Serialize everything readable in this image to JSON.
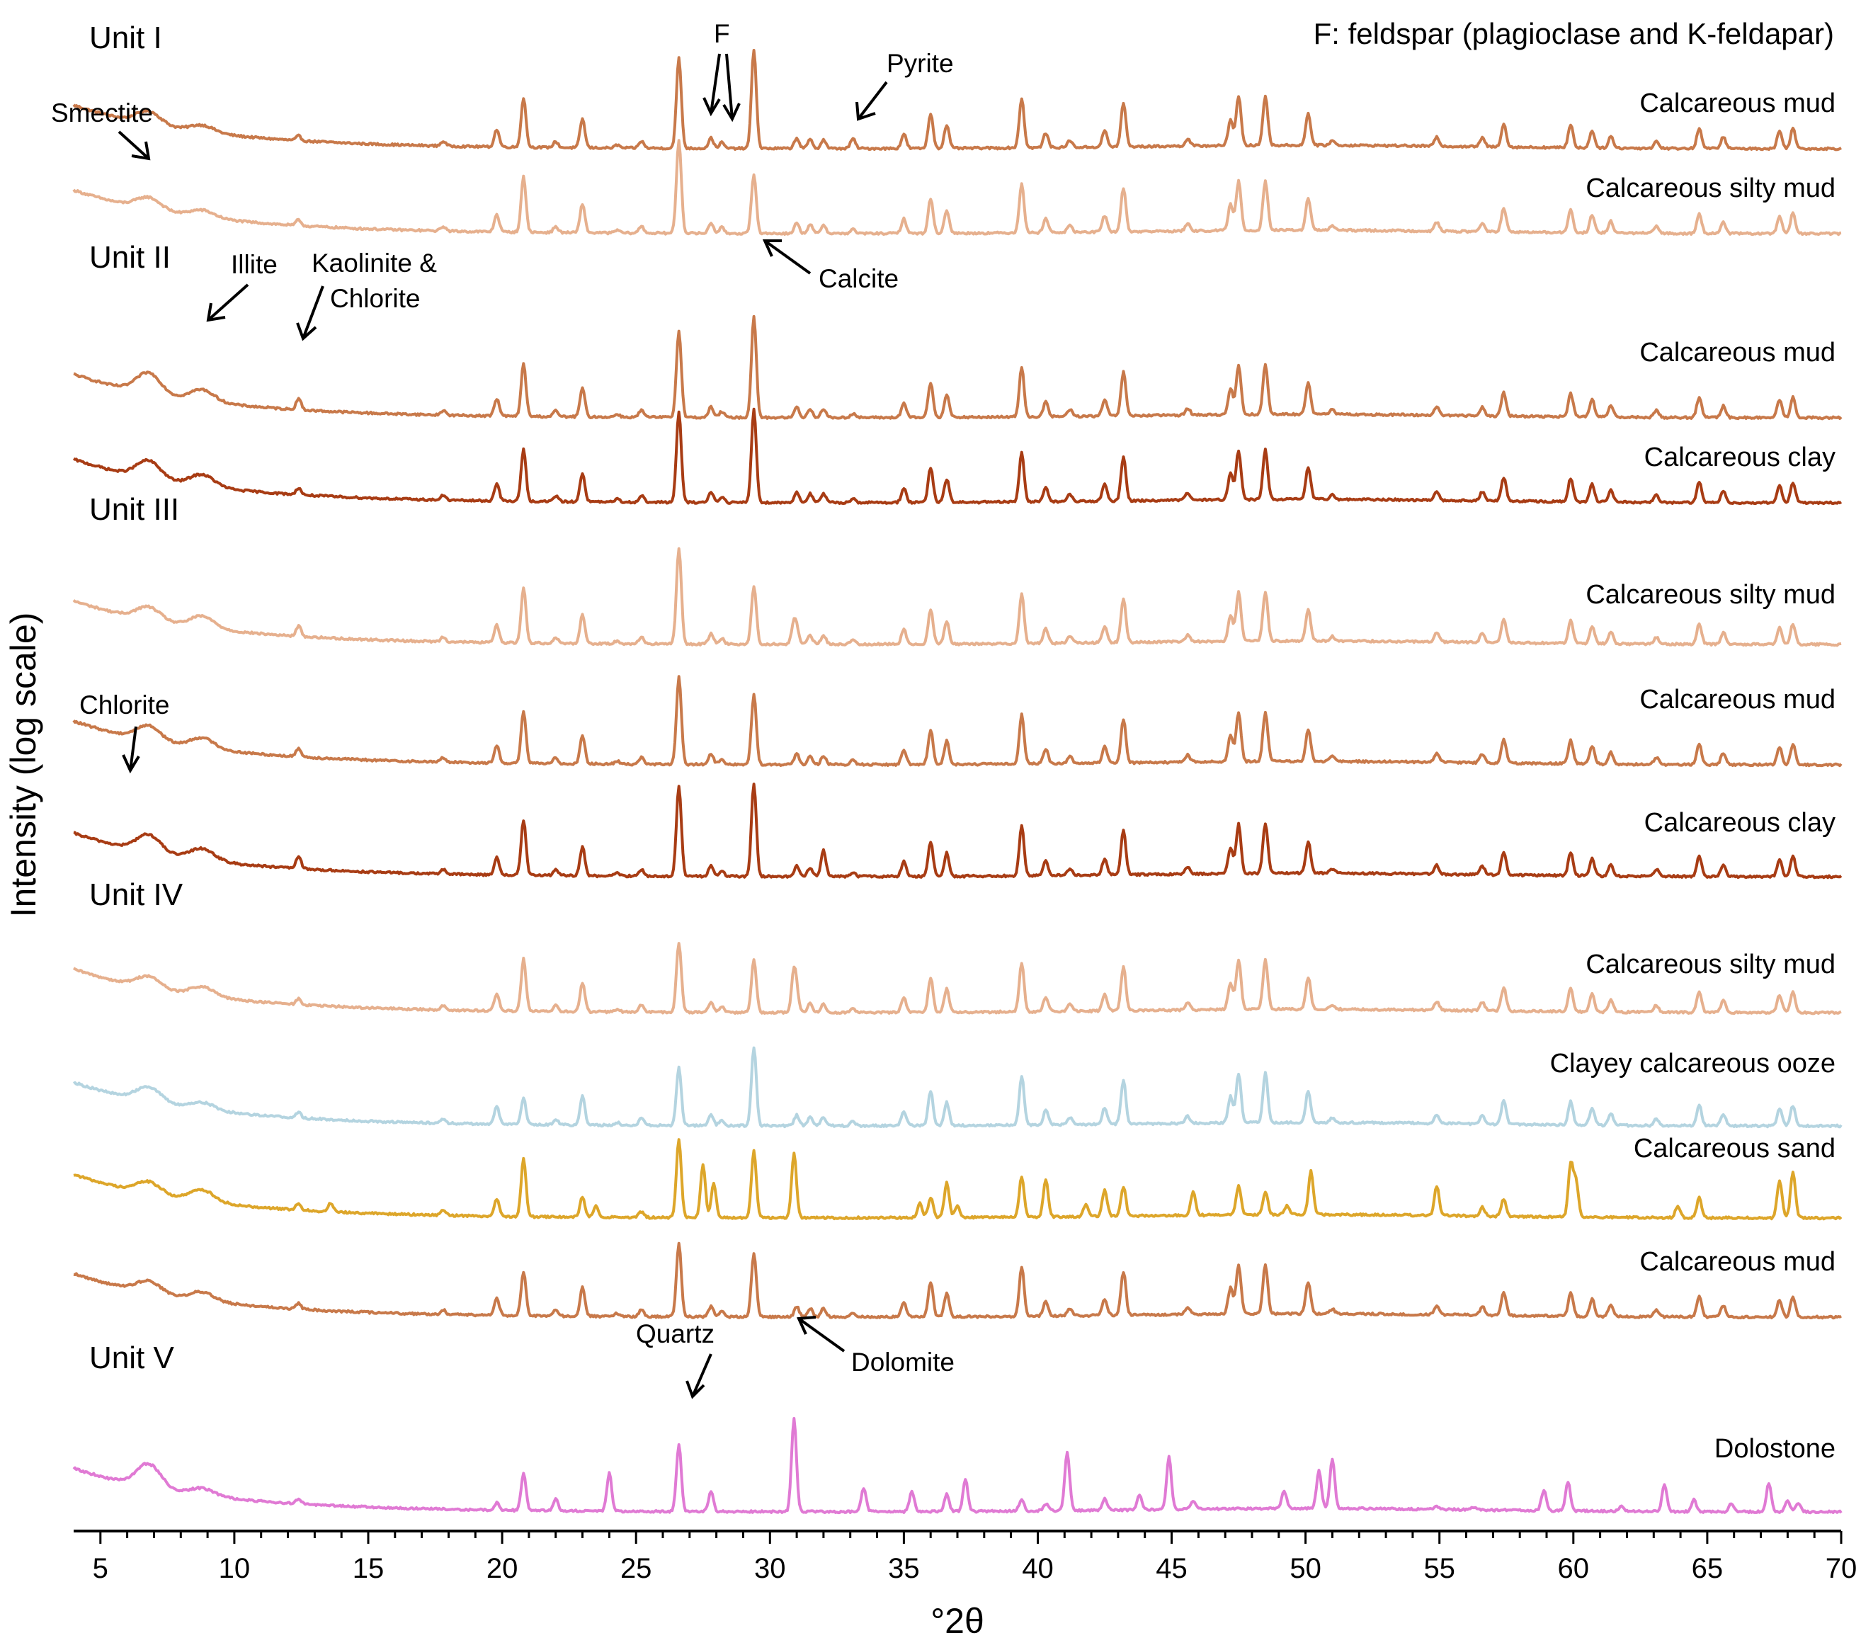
{
  "chart_data": {
    "type": "line",
    "xlabel": "°2θ",
    "ylabel": "Intensity (log scale)",
    "xlim": [
      4,
      70
    ],
    "xticks": [
      5,
      10,
      15,
      20,
      25,
      30,
      35,
      40,
      45,
      50,
      55,
      60,
      65,
      70
    ],
    "grid": false,
    "note": "F: feldspar (plagioclase and K-feldapar)",
    "units": [
      {
        "name": "Unit I",
        "series_start": 0
      },
      {
        "name": "Unit II",
        "series_start": 2
      },
      {
        "name": "Unit III",
        "series_start": 4
      },
      {
        "name": "Unit IV",
        "series_start": 7
      },
      {
        "name": "Unit V",
        "series_start": 11
      }
    ],
    "mineral_peaks": {
      "Smectite": 6.8,
      "Illite": 8.8,
      "Kaolinite & Chlorite": 12.4,
      "F": [
        27.8,
        28.2
      ],
      "Calcite": 29.4,
      "Pyrite": 33.1,
      "Chlorite": 6.2,
      "Quartz": 26.6,
      "Dolomite": 30.9
    },
    "series": [
      {
        "name": "Calcareous mud",
        "unit": "Unit I",
        "color": "#c8794a",
        "profile": "calc",
        "baseline": [
          4,
          0.75
        ],
        "peaks": [
          [
            6.8,
            0.22
          ],
          [
            8.8,
            0.12
          ],
          [
            12.4,
            0.08
          ],
          [
            20.8,
            0.85
          ],
          [
            26.6,
            1.55
          ],
          [
            29.4,
            1.7
          ],
          [
            33.1,
            0.1
          ]
        ]
      },
      {
        "name": "Calcareous silty mud",
        "unit": "Unit I",
        "color": "#e6b08e",
        "profile": "calc",
        "baseline": [
          4,
          0.75
        ],
        "peaks": [
          [
            6.8,
            0.2
          ],
          [
            8.8,
            0.12
          ],
          [
            12.4,
            0.1
          ],
          [
            20.8,
            0.95
          ],
          [
            26.6,
            1.6
          ],
          [
            29.4,
            1.0
          ]
        ]
      },
      {
        "name": "Calcareous mud",
        "unit": "Unit II",
        "color": "#c8794a",
        "profile": "calc",
        "baseline": [
          4,
          0.75
        ],
        "peaks": [
          [
            6.8,
            0.35
          ],
          [
            8.8,
            0.2
          ],
          [
            12.4,
            0.2
          ],
          [
            20.8,
            0.9
          ],
          [
            26.6,
            1.5
          ],
          [
            29.4,
            1.75
          ]
        ]
      },
      {
        "name": "Calcareous clay",
        "unit": "Unit II",
        "color": "#a83c14",
        "profile": "calc",
        "baseline": [
          4,
          0.75
        ],
        "peaks": [
          [
            6.8,
            0.3
          ],
          [
            8.8,
            0.2
          ],
          [
            12.4,
            0.12
          ],
          [
            20.8,
            0.9
          ],
          [
            26.6,
            1.55
          ],
          [
            29.4,
            1.6
          ]
        ]
      },
      {
        "name": "Calcareous silty mud",
        "unit": "Unit III",
        "color": "#e6b08e",
        "profile": "calc",
        "baseline": [
          4,
          0.75
        ],
        "peaks": [
          [
            6.8,
            0.22
          ],
          [
            8.8,
            0.2
          ],
          [
            12.4,
            0.18
          ],
          [
            20.8,
            0.95
          ],
          [
            26.6,
            1.65
          ],
          [
            29.4,
            1.0
          ],
          [
            30.9,
            0.35
          ]
        ]
      },
      {
        "name": "Calcareous mud",
        "unit": "Unit III",
        "color": "#c8794a",
        "profile": "calc",
        "baseline": [
          4,
          0.75
        ],
        "peaks": [
          [
            6.8,
            0.25
          ],
          [
            8.8,
            0.18
          ],
          [
            12.4,
            0.15
          ],
          [
            20.8,
            0.9
          ],
          [
            26.6,
            1.5
          ],
          [
            29.4,
            1.2
          ]
        ]
      },
      {
        "name": "Calcareous clay",
        "unit": "Unit III",
        "color": "#a83c14",
        "profile": "calc",
        "baseline": [
          4,
          0.75
        ],
        "peaks": [
          [
            6.8,
            0.3
          ],
          [
            8.8,
            0.2
          ],
          [
            12.4,
            0.22
          ],
          [
            20.8,
            0.95
          ],
          [
            26.6,
            1.55
          ],
          [
            29.4,
            1.6
          ],
          [
            32.0,
            0.3
          ]
        ]
      },
      {
        "name": "Calcareous silty mud",
        "unit": "Unit IV",
        "color": "#e6b08e",
        "profile": "calc",
        "baseline": [
          4,
          0.75
        ],
        "peaks": [
          [
            6.8,
            0.2
          ],
          [
            8.8,
            0.16
          ],
          [
            12.4,
            0.1
          ],
          [
            20.8,
            0.9
          ],
          [
            26.6,
            1.2
          ],
          [
            29.4,
            0.9
          ],
          [
            30.9,
            0.7
          ]
        ]
      },
      {
        "name": "Clayey calcareous ooze",
        "unit": "Unit IV",
        "color": "#b4d4e0",
        "profile": "calc",
        "baseline": [
          4,
          0.75
        ],
        "peaks": [
          [
            6.8,
            0.25
          ],
          [
            8.8,
            0.12
          ],
          [
            12.4,
            0.1
          ],
          [
            20.8,
            0.45
          ],
          [
            26.6,
            1.0
          ],
          [
            29.4,
            1.35
          ]
        ]
      },
      {
        "name": "Calcareous sand",
        "unit": "Unit IV",
        "color": "#dda62a",
        "profile": "sand",
        "baseline": [
          4,
          0.75
        ],
        "peaks": [
          [
            6.8,
            0.2
          ],
          [
            8.8,
            0.2
          ],
          [
            12.4,
            0.12
          ],
          [
            20.8,
            1.0
          ],
          [
            26.6,
            1.35
          ],
          [
            27.5,
            0.9
          ],
          [
            27.9,
            0.6
          ],
          [
            29.4,
            1.15
          ],
          [
            30.9,
            1.1
          ],
          [
            50.2,
            0.75
          ]
        ]
      },
      {
        "name": "Calcareous mud",
        "unit": "Unit IV",
        "color": "#c8794a",
        "profile": "calc",
        "baseline": [
          4,
          0.75
        ],
        "peaks": [
          [
            6.8,
            0.2
          ],
          [
            8.8,
            0.15
          ],
          [
            12.4,
            0.1
          ],
          [
            20.8,
            0.75
          ],
          [
            26.6,
            1.25
          ],
          [
            29.4,
            1.1
          ]
        ]
      },
      {
        "name": "Dolostone",
        "unit": "Unit V",
        "color": "#e07ad4",
        "profile": "dolo",
        "baseline": [
          4,
          0.75
        ],
        "peaks": [
          [
            6.8,
            0.4
          ],
          [
            8.8,
            0.12
          ],
          [
            12.4,
            0.08
          ],
          [
            20.8,
            0.65
          ],
          [
            24.0,
            0.65
          ],
          [
            26.6,
            1.15
          ],
          [
            30.9,
            1.6
          ],
          [
            41.1,
            1.0
          ],
          [
            44.9,
            0.9
          ],
          [
            51.0,
            0.85
          ]
        ]
      }
    ]
  }
}
